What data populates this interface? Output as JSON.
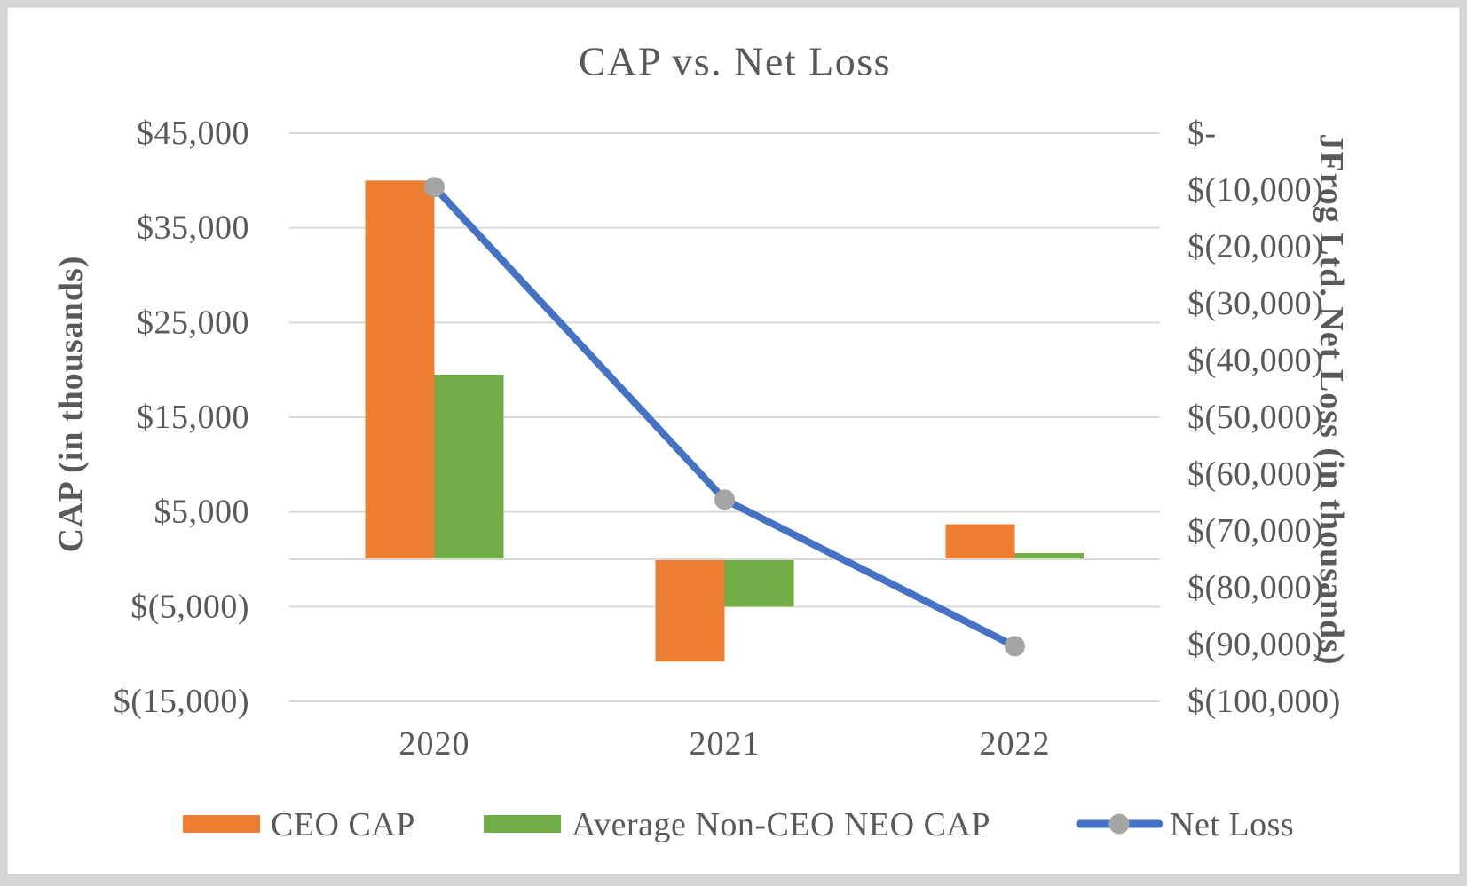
{
  "frame": {
    "page_background": "#d6d6d6",
    "chart_background": "#ffffff",
    "chart_border": "#c9c9c9"
  },
  "chart_data": {
    "type": "combo",
    "title": "CAP vs. Net Loss",
    "categories": [
      "2020",
      "2021",
      "2022"
    ],
    "series": [
      {
        "name": "CEO CAP",
        "type": "bar",
        "axis": "left",
        "color": "#ED7D31",
        "values": [
          40000,
          -10800,
          3700
        ]
      },
      {
        "name": "Average Non-CEO NEO CAP",
        "type": "bar",
        "axis": "left",
        "color": "#70AD47",
        "values": [
          19500,
          -5000,
          650
        ]
      },
      {
        "name": "Net Loss",
        "type": "line",
        "axis": "right",
        "color": "#4472C4",
        "marker_color": "#A5A5A5",
        "values": [
          -9500,
          -64500,
          -90300
        ]
      }
    ],
    "left_axis": {
      "title": "CAP (in thousands)",
      "min": -15000,
      "max": 45000,
      "ticks": [
        {
          "value": 45000,
          "label": "$45,000"
        },
        {
          "value": 35000,
          "label": "$35,000"
        },
        {
          "value": 25000,
          "label": "$25,000"
        },
        {
          "value": 15000,
          "label": "$15,000"
        },
        {
          "value": 5000,
          "label": "$5,000"
        },
        {
          "value": -5000,
          "label": "$(5,000)"
        },
        {
          "value": -15000,
          "label": "$(15,000)"
        }
      ]
    },
    "right_axis": {
      "title": "JFrog Ltd. Net Loss (in thousands)",
      "min": -100000,
      "max": 0,
      "ticks": [
        {
          "value": 0,
          "label": "$-"
        },
        {
          "value": -10000,
          "label": "$(10,000)"
        },
        {
          "value": -20000,
          "label": "$(20,000)"
        },
        {
          "value": -30000,
          "label": "$(30,000)"
        },
        {
          "value": -40000,
          "label": "$(40,000)"
        },
        {
          "value": -50000,
          "label": "$(50,000)"
        },
        {
          "value": -60000,
          "label": "$(60,000)"
        },
        {
          "value": -70000,
          "label": "$(70,000)"
        },
        {
          "value": -80000,
          "label": "$(80,000)"
        },
        {
          "value": -90000,
          "label": "$(90,000)"
        },
        {
          "value": -100000,
          "label": "$(100,000)"
        }
      ]
    },
    "grid": true,
    "legend_position": "bottom",
    "text_color": "#595959",
    "gridline_color": "#D9D9D9"
  }
}
